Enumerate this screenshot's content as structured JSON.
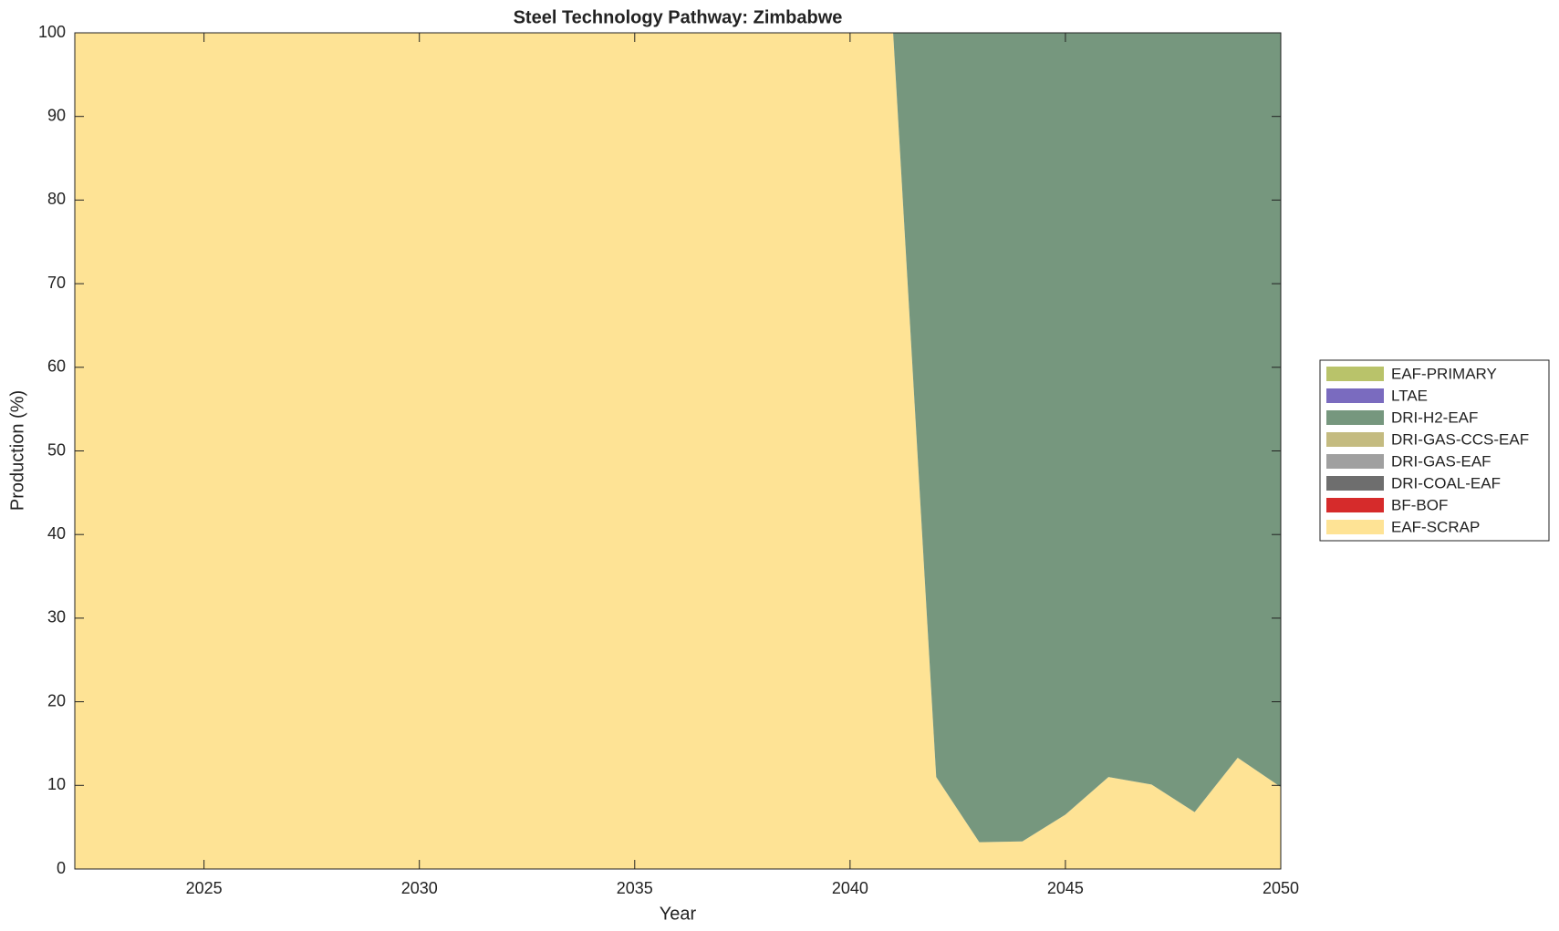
{
  "chart_data": {
    "type": "area",
    "stacked": true,
    "title": "Steel Technology Pathway: Zimbabwe",
    "x_label": "Year",
    "y_label": "Production (%)",
    "x": [
      2022,
      2023,
      2024,
      2025,
      2026,
      2027,
      2028,
      2029,
      2030,
      2031,
      2032,
      2033,
      2034,
      2035,
      2036,
      2037,
      2038,
      2039,
      2040,
      2041,
      2042,
      2043,
      2044,
      2045,
      2046,
      2047,
      2048,
      2049,
      2050
    ],
    "series": [
      {
        "name": "EAF-SCRAP",
        "color": "#fee395",
        "values": [
          100,
          100,
          100,
          100,
          100,
          100,
          100,
          100,
          100,
          100,
          100,
          100,
          100,
          100,
          100,
          100,
          100,
          100,
          100,
          100,
          11,
          3.2,
          3.3,
          6.5,
          11,
          10.1,
          6.8,
          13.3,
          9.8
        ]
      },
      {
        "name": "BF-BOF",
        "color": "#d62b2b",
        "values": [
          0,
          0,
          0,
          0,
          0,
          0,
          0,
          0,
          0,
          0,
          0,
          0,
          0,
          0,
          0,
          0,
          0,
          0,
          0,
          0,
          0,
          0,
          0,
          0,
          0,
          0,
          0,
          0,
          0
        ]
      },
      {
        "name": "DRI-COAL-EAF",
        "color": "#6e6e6e",
        "values": [
          0,
          0,
          0,
          0,
          0,
          0,
          0,
          0,
          0,
          0,
          0,
          0,
          0,
          0,
          0,
          0,
          0,
          0,
          0,
          0,
          0,
          0,
          0,
          0,
          0,
          0,
          0,
          0,
          0
        ]
      },
      {
        "name": "DRI-GAS-EAF",
        "color": "#a0a0a0",
        "values": [
          0,
          0,
          0,
          0,
          0,
          0,
          0,
          0,
          0,
          0,
          0,
          0,
          0,
          0,
          0,
          0,
          0,
          0,
          0,
          0,
          0,
          0,
          0,
          0,
          0,
          0,
          0,
          0,
          0
        ]
      },
      {
        "name": "DRI-GAS-CCS-EAF",
        "color": "#c4bb80",
        "values": [
          0,
          0,
          0,
          0,
          0,
          0,
          0,
          0,
          0,
          0,
          0,
          0,
          0,
          0,
          0,
          0,
          0,
          0,
          0,
          0,
          0,
          0,
          0,
          0,
          0,
          0,
          0,
          0,
          0
        ]
      },
      {
        "name": "DRI-H2-EAF",
        "color": "#76977e",
        "values": [
          0,
          0,
          0,
          0,
          0,
          0,
          0,
          0,
          0,
          0,
          0,
          0,
          0,
          0,
          0,
          0,
          0,
          0,
          0,
          0,
          89,
          96.8,
          96.7,
          93.5,
          89,
          89.9,
          93.2,
          86.7,
          90.2
        ]
      },
      {
        "name": "LTAE",
        "color": "#7a6bbf",
        "values": [
          0,
          0,
          0,
          0,
          0,
          0,
          0,
          0,
          0,
          0,
          0,
          0,
          0,
          0,
          0,
          0,
          0,
          0,
          0,
          0,
          0,
          0,
          0,
          0,
          0,
          0,
          0,
          0,
          0
        ]
      },
      {
        "name": "EAF-PRIMARY",
        "color": "#b9c36a",
        "values": [
          0,
          0,
          0,
          0,
          0,
          0,
          0,
          0,
          0,
          0,
          0,
          0,
          0,
          0,
          0,
          0,
          0,
          0,
          0,
          0,
          0,
          0,
          0,
          0,
          0,
          0,
          0,
          0,
          0
        ]
      }
    ],
    "xlim": [
      2022,
      2050
    ],
    "xticks": [
      2025,
      2030,
      2035,
      2040,
      2045,
      2050
    ],
    "ylim": [
      0,
      100
    ],
    "yticks": [
      0,
      10,
      20,
      30,
      40,
      50,
      60,
      70,
      80,
      90,
      100
    ],
    "legend": "right"
  }
}
